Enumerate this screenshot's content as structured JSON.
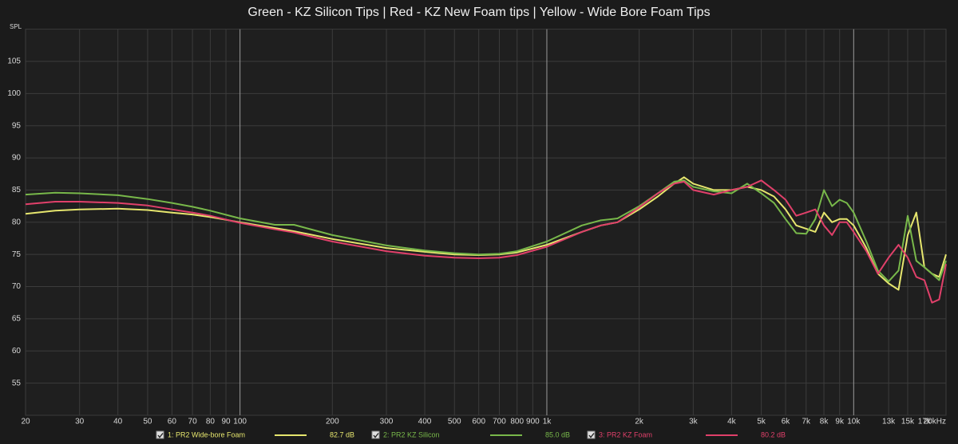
{
  "chart_data": {
    "type": "line",
    "title": "Green - KZ Silicon Tips | Red - KZ New Foam tips | Yellow - Wide Bore Foam Tips",
    "y_label": "SPL",
    "log_x": true,
    "grid": true,
    "xlim": [
      20,
      20000
    ],
    "ylim": [
      50,
      110
    ],
    "yticks": [
      55,
      60,
      65,
      70,
      75,
      80,
      85,
      90,
      95,
      100,
      105
    ],
    "xticks": [
      20,
      30,
      40,
      50,
      60,
      70,
      80,
      90,
      100,
      200,
      300,
      400,
      500,
      600,
      700,
      800,
      900,
      {
        "value": 1000,
        "label": "1k"
      },
      {
        "value": 2000,
        "label": "2k"
      },
      {
        "value": 3000,
        "label": "3k"
      },
      {
        "value": 4000,
        "label": "4k"
      },
      {
        "value": 5000,
        "label": "5k"
      },
      {
        "value": 6000,
        "label": "6k"
      },
      {
        "value": 7000,
        "label": "7k"
      },
      {
        "value": 8000,
        "label": "8k"
      },
      {
        "value": 9000,
        "label": "9k"
      },
      {
        "value": 10000,
        "label": "10k"
      },
      {
        "value": 13000,
        "label": "13k"
      },
      {
        "value": 15000,
        "label": "15k"
      },
      {
        "value": 17000,
        "label": "17k"
      },
      {
        "value": 20000,
        "label": "20kHz"
      }
    ],
    "x": [
      20,
      25,
      30,
      40,
      50,
      60,
      70,
      80,
      100,
      130,
      150,
      200,
      300,
      400,
      500,
      600,
      700,
      800,
      1000,
      1300,
      1500,
      1700,
      2000,
      2300,
      2600,
      2800,
      3000,
      3500,
      4000,
      4500,
      5000,
      5500,
      6000,
      6500,
      7000,
      7500,
      8000,
      8500,
      9000,
      9500,
      10000,
      11000,
      12000,
      13000,
      14000,
      15000,
      16000,
      17000,
      18000,
      19000,
      20000
    ],
    "series": [
      {
        "name": "1: PR2 Wide-bore Foam",
        "level": "82.7 dB",
        "color": "#e6e66e",
        "values": [
          81.3,
          81.8,
          82.0,
          82.1,
          81.9,
          81.5,
          81.2,
          80.8,
          80.0,
          79.1,
          78.6,
          77.4,
          76.0,
          75.4,
          75.0,
          74.9,
          75.0,
          75.3,
          76.5,
          78.5,
          79.5,
          80.0,
          82.0,
          84.0,
          86.0,
          87.0,
          86.0,
          85.0,
          85.0,
          85.5,
          85.0,
          84.0,
          82.0,
          79.5,
          79.0,
          78.5,
          81.5,
          80.0,
          80.5,
          80.5,
          79.5,
          76.0,
          72.0,
          70.5,
          69.5,
          78.0,
          81.5,
          73.0,
          72.0,
          71.5,
          75.0
        ]
      },
      {
        "name": "2: PR2 KZ Silicon",
        "level": "85.0 dB",
        "color": "#78b84a",
        "values": [
          84.3,
          84.6,
          84.5,
          84.2,
          83.6,
          83.0,
          82.4,
          81.8,
          80.6,
          79.6,
          79.6,
          78.0,
          76.4,
          75.6,
          75.2,
          75.0,
          75.1,
          75.5,
          77.0,
          79.5,
          80.3,
          80.6,
          82.5,
          84.5,
          86.3,
          86.5,
          85.5,
          84.8,
          84.5,
          86.0,
          84.5,
          83.0,
          80.5,
          78.3,
          78.2,
          80.5,
          85.0,
          82.5,
          83.5,
          83.0,
          81.5,
          77.0,
          72.5,
          70.8,
          72.5,
          81.0,
          74.0,
          73.0,
          72.0,
          71.0,
          74.0
        ]
      },
      {
        "name": "3: PR2 KZ Foam",
        "level": "80.2 dB",
        "color": "#e0406a",
        "values": [
          82.8,
          83.2,
          83.2,
          83.0,
          82.6,
          82.0,
          81.5,
          81.0,
          79.9,
          78.9,
          78.4,
          77.0,
          75.5,
          74.8,
          74.5,
          74.4,
          74.5,
          74.9,
          76.2,
          78.5,
          79.5,
          80.0,
          82.3,
          84.5,
          86.0,
          86.3,
          85.0,
          84.3,
          85.0,
          85.5,
          86.5,
          85.0,
          83.5,
          81.0,
          81.5,
          82.0,
          79.5,
          78.0,
          80.0,
          80.0,
          78.5,
          75.5,
          72.0,
          74.5,
          76.5,
          74.5,
          71.5,
          71.0,
          67.5,
          68.0,
          73.5
        ]
      }
    ]
  }
}
